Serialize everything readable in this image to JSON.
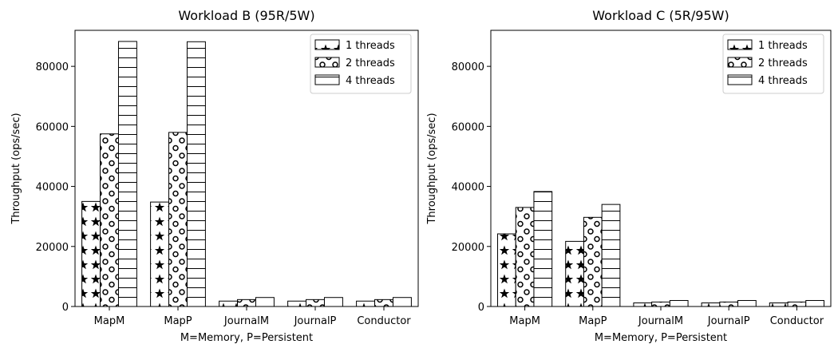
{
  "chart_data": [
    {
      "type": "bar",
      "title": "Workload B (95R/5W)",
      "xlabel": "M=Memory, P=Persistent",
      "ylabel": "Throughput (ops/sec)",
      "categories": [
        "MapM",
        "MapP",
        "JournalM",
        "JournalP",
        "Conductor"
      ],
      "ylim": [
        0,
        92000
      ],
      "yticks": [
        0,
        20000,
        40000,
        60000,
        80000
      ],
      "legend_position": "top-right",
      "series": [
        {
          "name": "1 threads",
          "pattern": "stars",
          "values": [
            35000,
            34800,
            1800,
            1800,
            1800
          ]
        },
        {
          "name": "2 threads",
          "pattern": "circles",
          "values": [
            57500,
            58000,
            2300,
            2300,
            2300
          ]
        },
        {
          "name": "4 threads",
          "pattern": "horizontal-lines",
          "values": [
            88300,
            88200,
            3000,
            3000,
            3000
          ]
        }
      ]
    },
    {
      "type": "bar",
      "title": "Workload C (5R/95W)",
      "xlabel": "M=Memory, P=Persistent",
      "ylabel": "Throughput (ops/sec)",
      "categories": [
        "MapM",
        "MapP",
        "JournalM",
        "JournalP",
        "Conductor"
      ],
      "ylim": [
        0,
        92000
      ],
      "yticks": [
        0,
        20000,
        40000,
        60000,
        80000
      ],
      "legend_position": "top-right",
      "series": [
        {
          "name": "1 threads",
          "pattern": "stars",
          "values": [
            24200,
            21700,
            1200,
            1200,
            1200
          ]
        },
        {
          "name": "2 threads",
          "pattern": "circles",
          "values": [
            33000,
            29700,
            1500,
            1500,
            1500
          ]
        },
        {
          "name": "4 threads",
          "pattern": "horizontal-lines",
          "values": [
            38300,
            34000,
            2000,
            2000,
            2000
          ]
        }
      ]
    }
  ]
}
